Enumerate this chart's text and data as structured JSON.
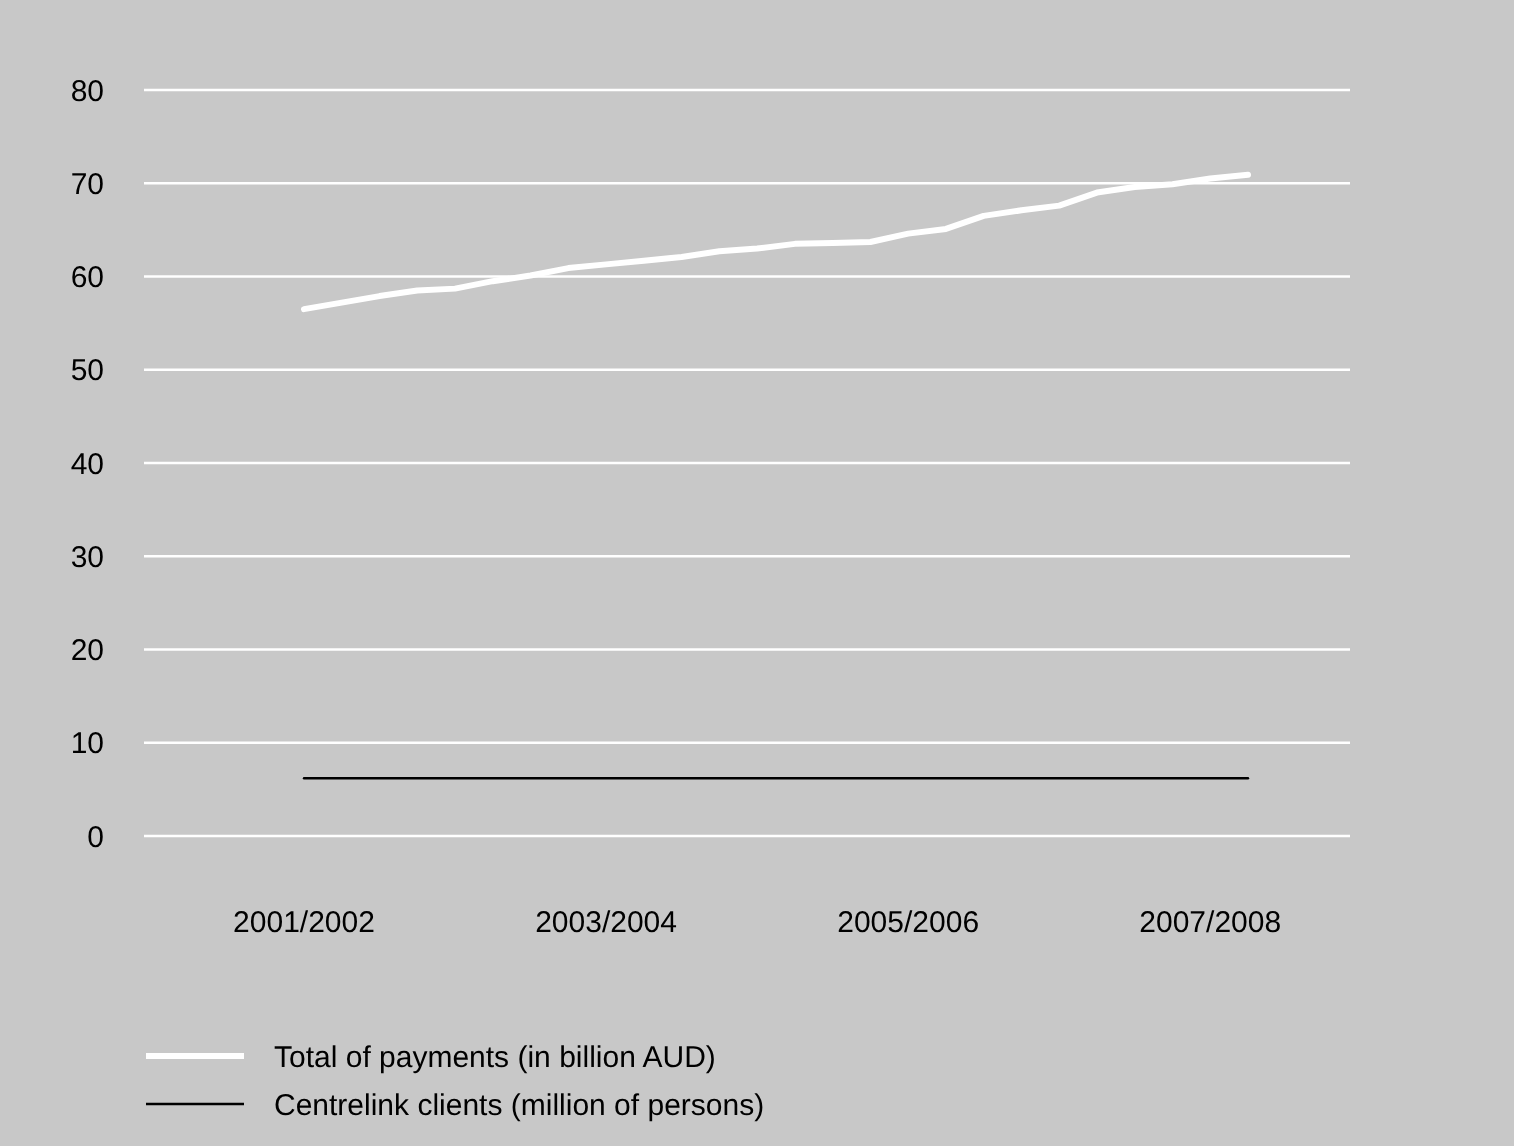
{
  "chart_data": {
    "type": "line",
    "categories": [
      "2001/2002",
      null,
      null,
      null,
      null,
      null,
      null,
      null,
      "2003/2004",
      null,
      null,
      null,
      null,
      null,
      null,
      null,
      "2005/2006",
      null,
      null,
      null,
      null,
      null,
      null,
      null,
      "2007/2008",
      null
    ],
    "series": [
      {
        "name": "Total of payments (in billion AUD)",
        "color": "#ffffff",
        "values": [
          56.5,
          57.2,
          57.9,
          58.5,
          58.7,
          59.5,
          60.1,
          60.9,
          61.3,
          61.7,
          62.1,
          62.7,
          63.0,
          63.5,
          63.6,
          63.7,
          64.6,
          65.1,
          66.5,
          67.1,
          67.6,
          69.0,
          69.6,
          69.9,
          70.5,
          70.9
        ]
      },
      {
        "name": "Centrelink clients (million of persons)",
        "color": "#000000",
        "values": [
          6.2,
          6.2,
          6.2,
          6.2,
          6.2,
          6.2,
          6.2,
          6.2,
          6.2,
          6.2,
          6.2,
          6.2,
          6.2,
          6.2,
          6.2,
          6.2,
          6.2,
          6.2,
          6.2,
          6.2,
          6.2,
          6.2,
          6.2,
          6.2,
          6.2,
          6.2
        ]
      }
    ],
    "ylim": [
      0,
      80
    ],
    "yticks": [
      0,
      10,
      20,
      30,
      40,
      50,
      60,
      70,
      80
    ],
    "grid": "y",
    "legend": "bottom",
    "marker": "none",
    "line_style": "solid"
  }
}
